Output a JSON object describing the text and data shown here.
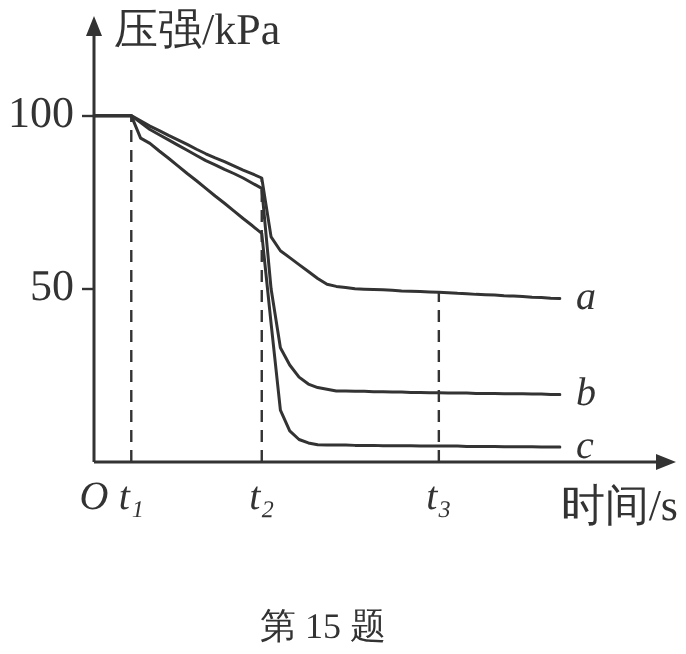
{
  "chart_data": {
    "type": "line",
    "ylabel": "压强/kPa",
    "xlabel": "时间/s",
    "annotations": [
      "第 15 题"
    ],
    "categories": [
      "O",
      null,
      null,
      null,
      "t₁",
      null,
      null,
      null,
      null,
      null,
      null,
      null,
      null,
      null,
      null,
      null,
      null,
      null,
      "t₂",
      null,
      null,
      null,
      null,
      null,
      null,
      null,
      null,
      null,
      null,
      null,
      null,
      null,
      null,
      null,
      null,
      null,
      null,
      "t₃",
      null,
      null,
      null,
      null,
      null,
      null,
      null,
      null,
      null,
      null,
      null,
      null,
      null
    ],
    "ylim": [
      0,
      123
    ],
    "yticks": [
      50,
      100
    ],
    "grid": false,
    "legend": "right",
    "marker": "none",
    "line_style": "solid",
    "ref_lines": [
      {
        "axis": "x",
        "value": "t₁",
        "line_style": "dashed",
        "color": "#333333"
      },
      {
        "axis": "x",
        "value": "t₂",
        "line_style": "dashed",
        "color": "#333333"
      },
      {
        "axis": "x",
        "value": "t₃",
        "line_style": "dashed",
        "color": "#333333"
      }
    ],
    "series": [
      {
        "name": "a",
        "color": "#333333",
        "values": [
          100,
          100,
          100,
          100,
          100,
          98.5,
          97,
          95.7,
          94.3,
          93,
          91.7,
          90.3,
          89,
          87.8,
          86.7,
          85.5,
          84.3,
          83.2,
          82,
          65,
          61,
          59,
          57,
          55,
          53,
          51.3,
          50.7,
          50.4,
          50,
          49.9,
          49.8,
          49.7,
          49.6,
          49.4,
          49.3,
          49.2,
          49.1,
          49,
          48.9,
          48.7,
          48.6,
          48.4,
          48.3,
          48.2,
          48,
          47.9,
          47.8,
          47.6,
          47.5,
          47.3,
          47.2
        ]
      },
      {
        "name": "b",
        "color": "#333333",
        "values": [
          100,
          100,
          100,
          100,
          100,
          98,
          96,
          94.5,
          93,
          91.5,
          90,
          88.5,
          87,
          85.8,
          84.5,
          83.3,
          82,
          80.5,
          79,
          50,
          33,
          28,
          24.5,
          22.5,
          21.5,
          21,
          20.5,
          20.5,
          20.4,
          20.4,
          20.3,
          20.3,
          20.2,
          20.2,
          20.1,
          20.1,
          20,
          20,
          19.9,
          19.9,
          19.9,
          19.8,
          19.8,
          19.8,
          19.7,
          19.7,
          19.7,
          19.6,
          19.6,
          19.5,
          19.5
        ]
      },
      {
        "name": "c",
        "color": "#333333",
        "values": [
          100,
          100,
          100,
          100,
          100,
          93.5,
          92,
          89.8,
          87.7,
          85.5,
          83.3,
          81.2,
          79,
          76.8,
          74.7,
          72.5,
          70.3,
          68.2,
          66,
          40,
          15,
          9,
          6.5,
          5.5,
          5,
          4.9,
          4.9,
          4.9,
          4.8,
          4.8,
          4.8,
          4.7,
          4.7,
          4.7,
          4.7,
          4.6,
          4.6,
          4.6,
          4.6,
          4.6,
          4.5,
          4.5,
          4.5,
          4.5,
          4.4,
          4.4,
          4.4,
          4.4,
          4.3,
          4.3,
          4.3
        ]
      }
    ]
  }
}
